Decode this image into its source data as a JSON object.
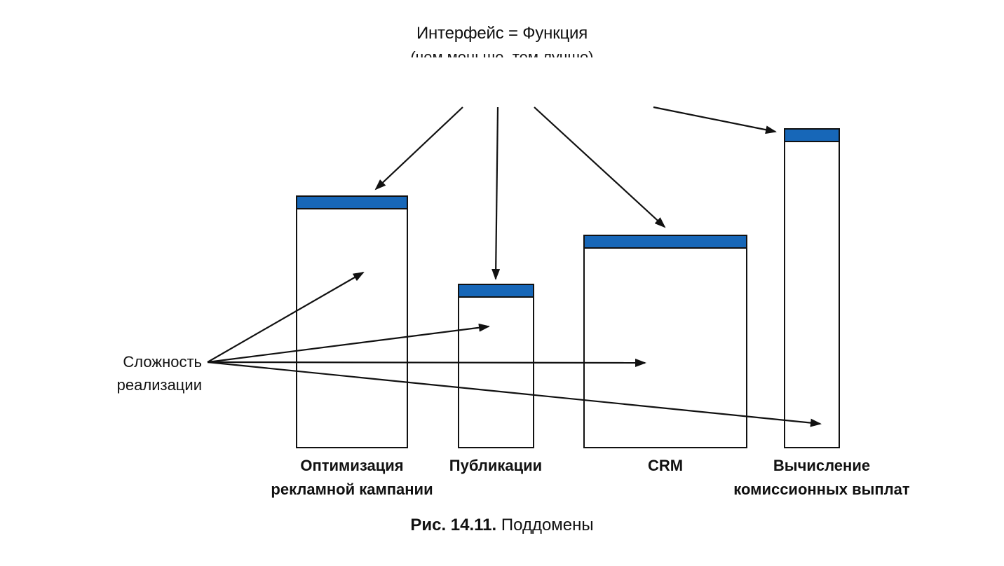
{
  "top_label": {
    "title": "Интерфейс = Функция",
    "subtitle": "(чем меньше, тем лучше)"
  },
  "complexity_label": {
    "line1": "Сложность",
    "line2": "реализации"
  },
  "subdomains": [
    {
      "line1": "Оптимизация",
      "line2": "рекламной кампании"
    },
    {
      "line1": "Публикации",
      "line2": ""
    },
    {
      "line1": "CRM",
      "line2": ""
    },
    {
      "line1": "Вычисление",
      "line2": "комиссионных выплат"
    }
  ],
  "caption": {
    "number": "Рис. 14.11.",
    "text": "Поддомены"
  },
  "colors": {
    "bar_cap": "#1767b8",
    "outline": "#111111",
    "background": "#ffffff"
  }
}
